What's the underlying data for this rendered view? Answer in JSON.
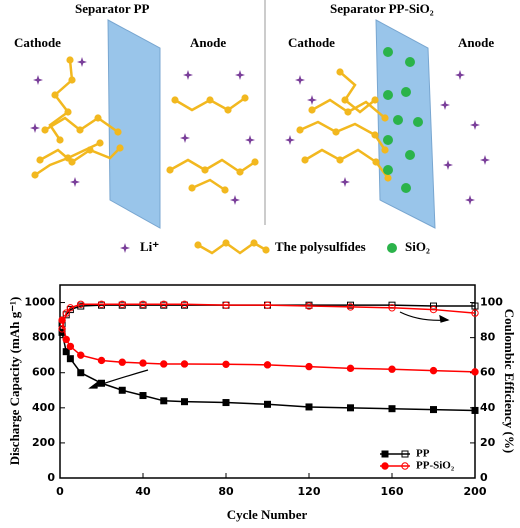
{
  "diagram": {
    "left": {
      "title": "Separator PP",
      "cathode": "Cathode",
      "anode": "Anode"
    },
    "right": {
      "title": "Separator PP-SiO₂",
      "cathode": "Cathode",
      "anode": "Anode"
    },
    "legend": [
      "Li⁺",
      "The polysulfides",
      "SiO₂"
    ]
  },
  "chart_data": {
    "type": "line",
    "xlabel": "Cycle Number",
    "ylabel": "Discharge Capacity (mAh g⁻¹)",
    "y2label": "Coulombic Efficiency (%)",
    "x": [
      1,
      3,
      5,
      10,
      20,
      30,
      40,
      50,
      60,
      80,
      100,
      120,
      140,
      160,
      180,
      200
    ],
    "series": [
      {
        "name": "PP",
        "color": "#000000",
        "values": [
          830,
          720,
          680,
          600,
          540,
          500,
          470,
          440,
          435,
          430,
          420,
          405,
          400,
          395,
          390,
          385
        ],
        "efficiency": [
          88,
          93,
          96,
          98,
          98.5,
          98.5,
          98.5,
          98.5,
          98.5,
          98.5,
          98.5,
          98.5,
          98.5,
          98.5,
          98,
          98
        ]
      },
      {
        "name": "PP-SiO₂",
        "color": "#ff0000",
        "values": [
          900,
          790,
          750,
          700,
          670,
          660,
          655,
          650,
          650,
          648,
          645,
          635,
          625,
          620,
          612,
          605
        ],
        "efficiency": [
          85,
          94,
          97,
          99,
          99,
          99,
          99,
          99,
          99,
          98.5,
          98.5,
          98,
          97.5,
          97,
          96,
          94
        ]
      }
    ],
    "xlim": [
      0,
      200
    ],
    "xticks": [
      0,
      40,
      80,
      120,
      160,
      200
    ],
    "ylim": [
      0,
      1100
    ],
    "yticks": [
      0,
      200,
      400,
      600,
      800,
      1000
    ],
    "y2lim": [
      0,
      110
    ],
    "y2ticks": [
      0,
      20,
      40,
      60,
      80,
      100
    ],
    "legend": "lower right"
  }
}
